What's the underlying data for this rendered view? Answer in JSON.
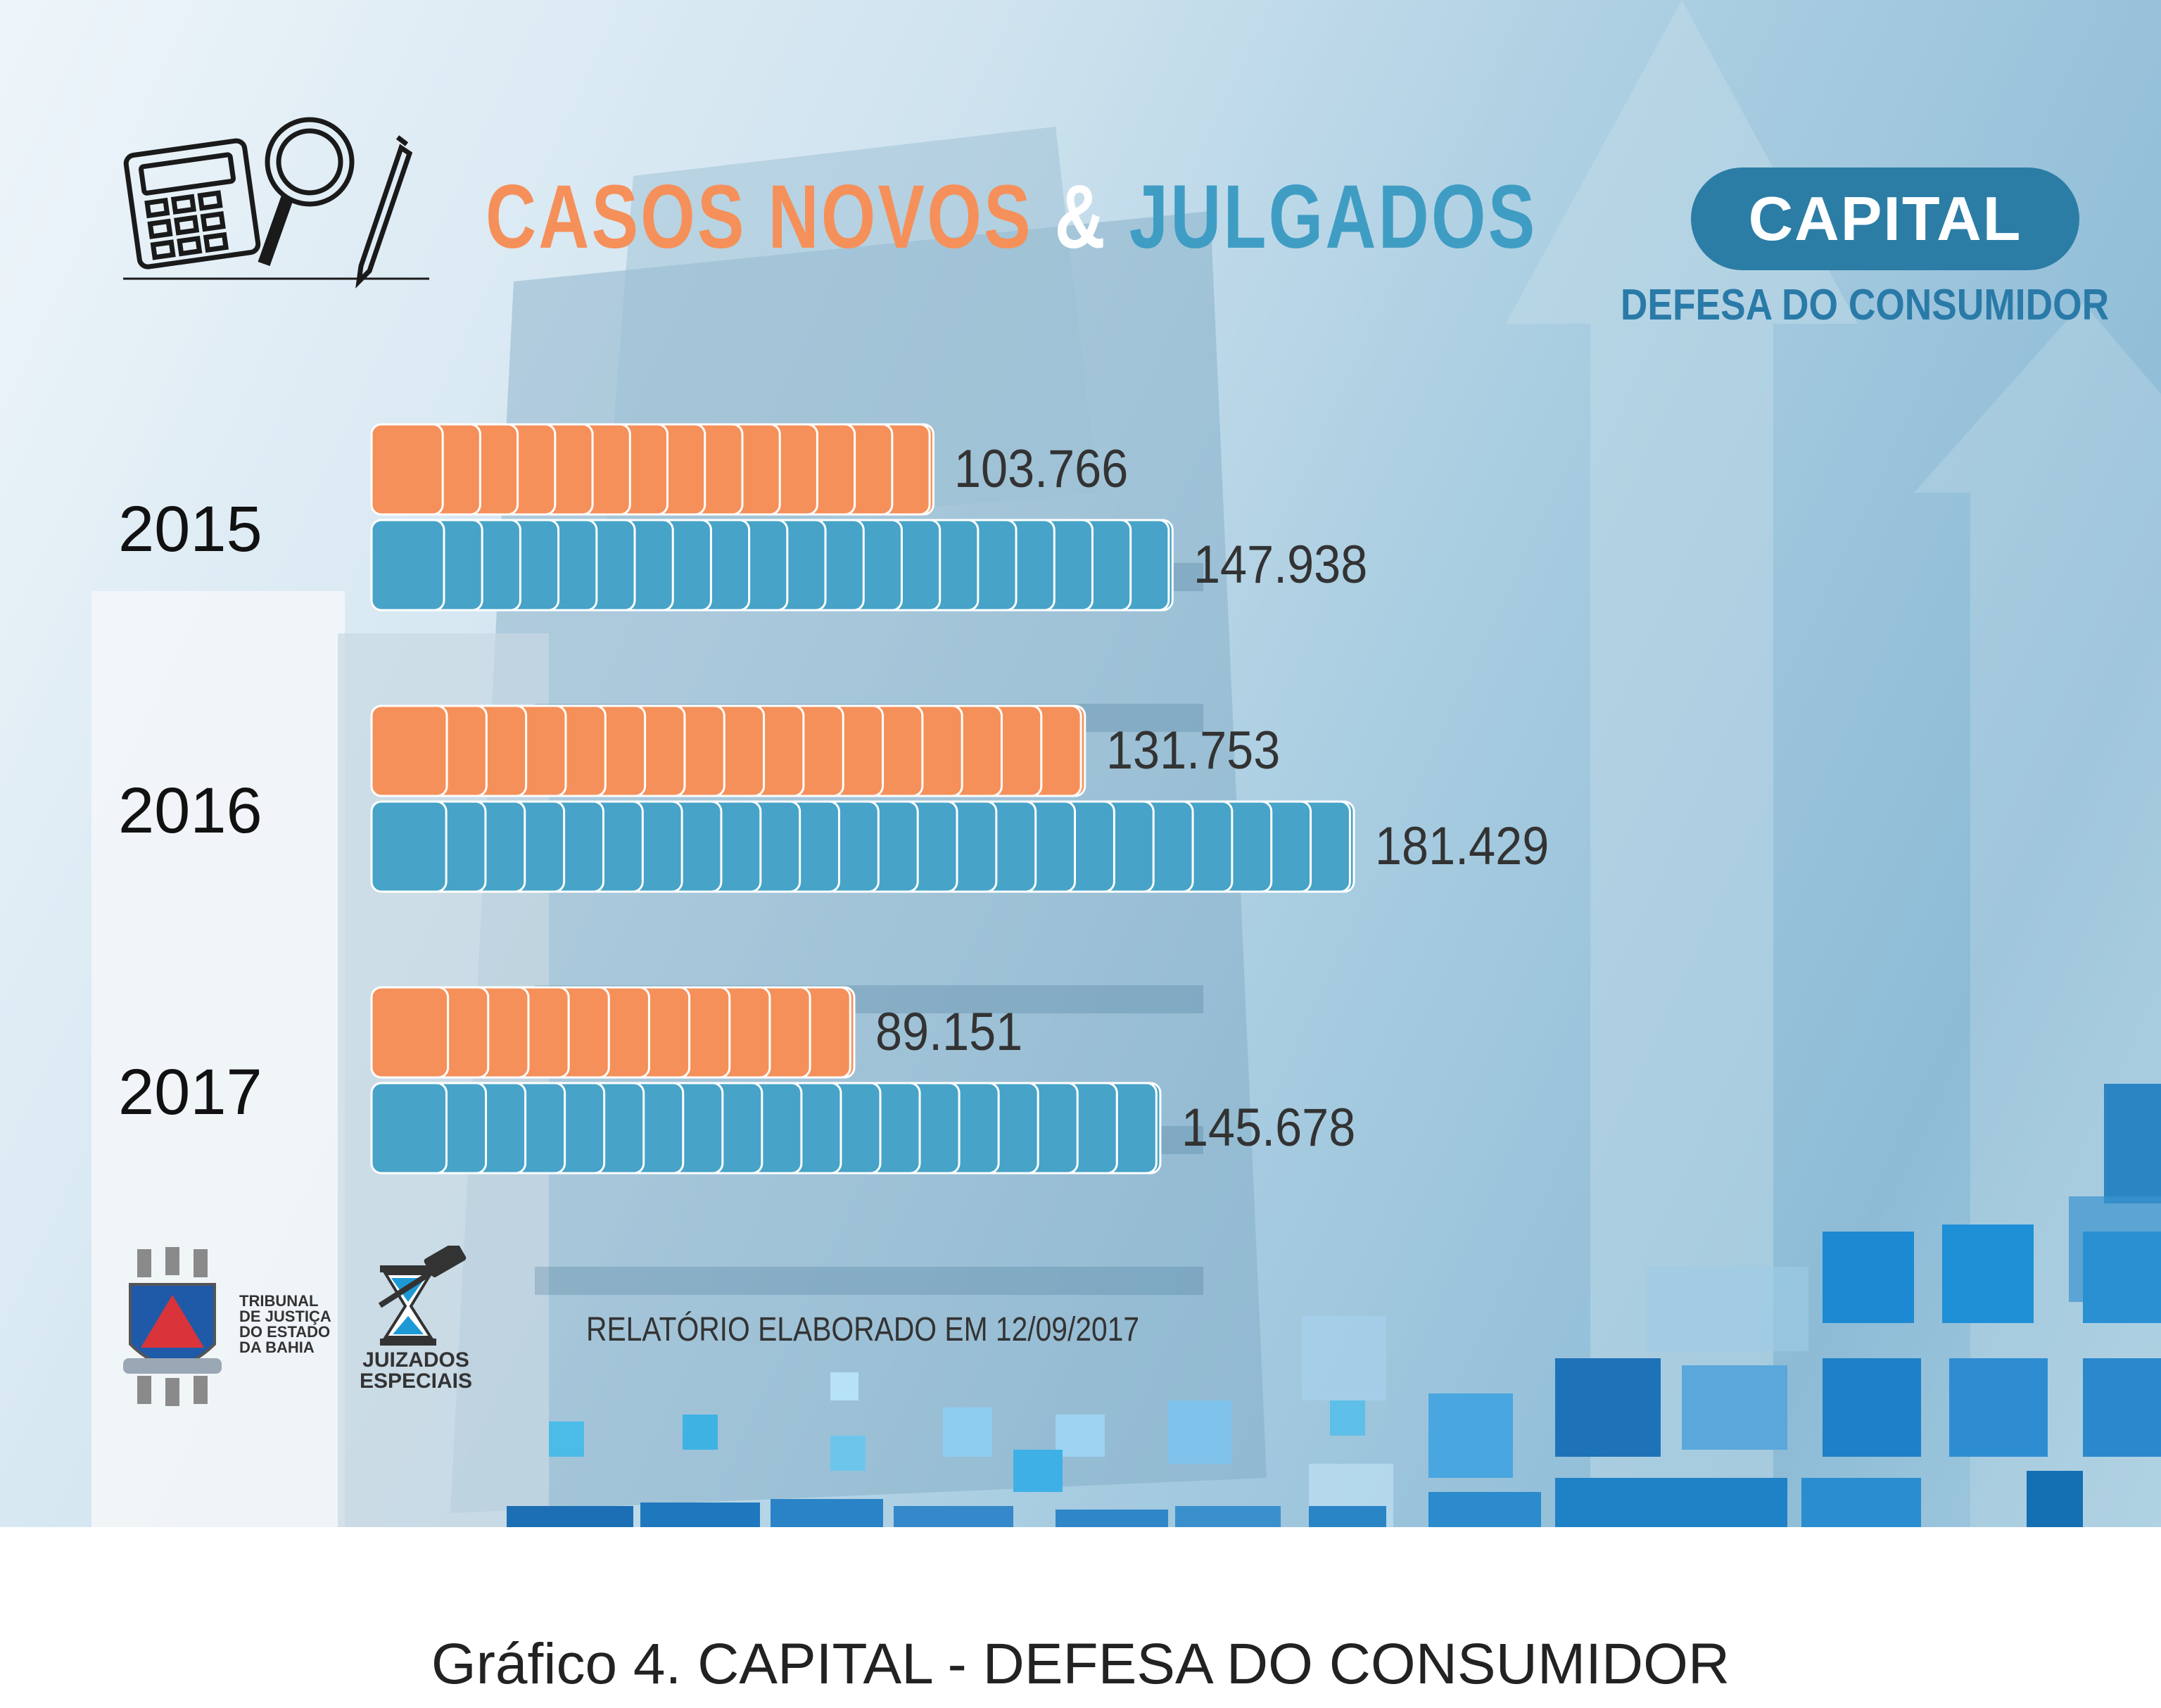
{
  "header": {
    "title_part1": "CASOS NOVOS",
    "title_amp": "&",
    "title_part2": "JULGADOS",
    "badge": "CAPITAL",
    "subtitle": "DEFESA DO CONSUMIDOR"
  },
  "colors": {
    "casos_novos": "#f5905a",
    "julgados": "#47a3c7",
    "badge": "#2c7da6"
  },
  "chart_data": {
    "type": "bar",
    "orientation": "horizontal",
    "categories": [
      "2015",
      "2016",
      "2017"
    ],
    "series": [
      {
        "values": [
          103766,
          131753,
          89151
        ],
        "labels": [
          "103.766",
          "131.753",
          "89.151"
        ]
      },
      {
        "values": [
          147938,
          181429,
          145678
        ],
        "labels": [
          "147.938",
          "181.429",
          "145.678"
        ]
      }
    ],
    "legend": "none"
  },
  "footer": {
    "tj_logo_text": "TRIBUNAL\nDE JUSTIÇA\nDO ESTADO\nDA BAHIA",
    "juizados_text": "JUIZADOS\nESPECIAIS",
    "report_note": "RELATÓRIO ELABORADO EM 12/09/2017"
  },
  "caption": "Gráfico 4. CAPITAL - DEFESA DO CONSUMIDOR"
}
